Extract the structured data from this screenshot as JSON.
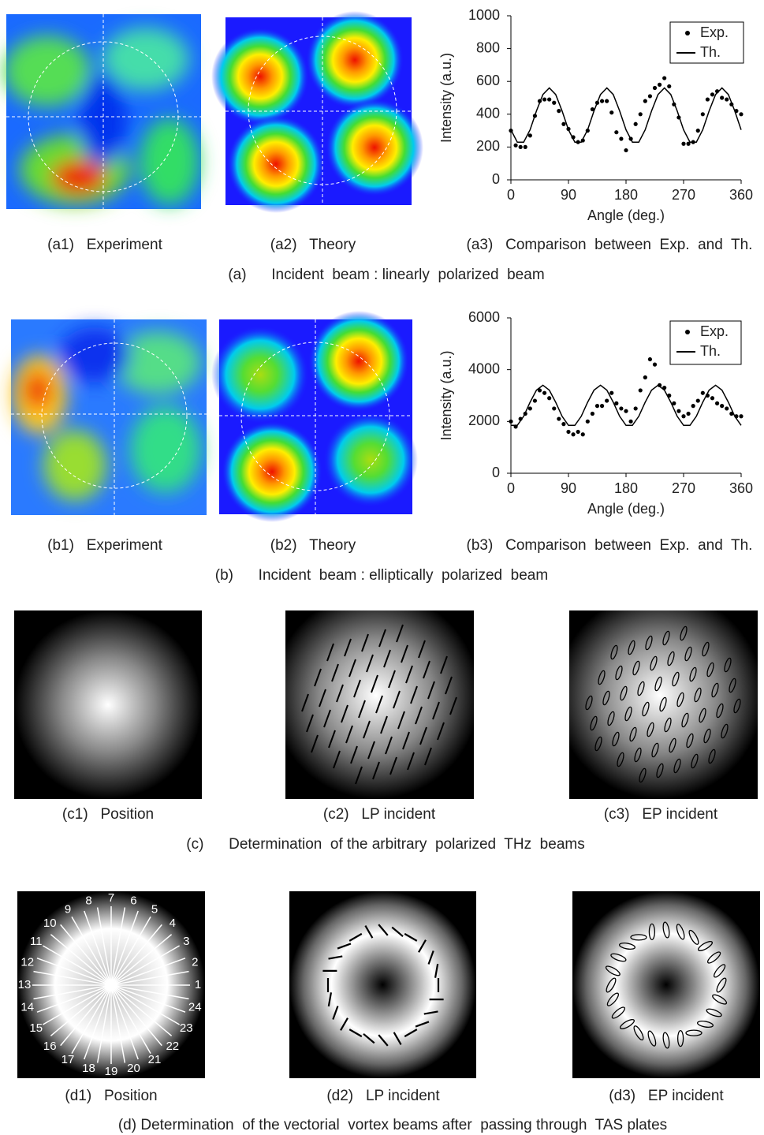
{
  "chart_data": [
    {
      "type": "line",
      "xlabel": "Angle (deg.)",
      "ylabel": "Intensity (a.u.)",
      "xlim": [
        0,
        360
      ],
      "xticks": [
        0,
        90,
        180,
        270,
        360
      ],
      "ylim": [
        0,
        1000
      ],
      "yticks": [
        0,
        200,
        400,
        600,
        800,
        1000
      ],
      "legend": "upper right",
      "series": [
        {
          "name": "Exp.",
          "type": "scatter",
          "color": "#000000",
          "x": [
            0,
            7.5,
            15,
            22.5,
            30,
            37.5,
            45,
            52.5,
            60,
            67.5,
            75,
            82.5,
            90,
            97.5,
            105,
            112.5,
            120,
            127.5,
            135,
            142.5,
            150,
            157.5,
            165,
            172.5,
            180,
            187.5,
            195,
            202.5,
            210,
            217.5,
            225,
            232.5,
            240,
            247.5,
            255,
            262.5,
            270,
            277.5,
            285,
            292.5,
            300,
            307.5,
            315,
            322.5,
            330,
            337.5,
            345,
            352.5,
            360
          ],
          "values": [
            300,
            210,
            200,
            200,
            270,
            390,
            480,
            490,
            490,
            470,
            420,
            340,
            310,
            260,
            230,
            240,
            300,
            430,
            470,
            480,
            480,
            410,
            290,
            250,
            180,
            250,
            340,
            400,
            480,
            510,
            560,
            580,
            620,
            570,
            460,
            380,
            220,
            220,
            230,
            300,
            400,
            490,
            520,
            540,
            500,
            490,
            460,
            420,
            400
          ]
        },
        {
          "name": "Th.",
          "type": "line",
          "color": "#000000",
          "x": [
            0,
            10,
            20,
            30,
            40,
            50,
            60,
            70,
            80,
            90,
            100,
            110,
            120,
            130,
            140,
            150,
            160,
            170,
            180,
            190,
            200,
            210,
            220,
            230,
            240,
            250,
            260,
            270,
            280,
            290,
            300,
            310,
            320,
            330,
            340,
            350,
            360
          ],
          "values": [
            305,
            230,
            230,
            305,
            420,
            520,
            560,
            520,
            420,
            305,
            230,
            230,
            305,
            420,
            520,
            560,
            520,
            420,
            305,
            230,
            230,
            305,
            420,
            520,
            560,
            520,
            420,
            305,
            230,
            230,
            305,
            420,
            520,
            560,
            520,
            420,
            305
          ]
        }
      ]
    },
    {
      "type": "line",
      "xlabel": "Angle (deg.)",
      "ylabel": "Intensity (a.u.)",
      "xlim": [
        0,
        360
      ],
      "xticks": [
        0,
        90,
        180,
        270,
        360
      ],
      "ylim": [
        0,
        6000
      ],
      "yticks": [
        0,
        2000,
        4000,
        6000
      ],
      "legend": "upper right",
      "series": [
        {
          "name": "Exp.",
          "type": "scatter",
          "color": "#000000",
          "x": [
            0,
            7.5,
            15,
            22.5,
            30,
            37.5,
            45,
            52.5,
            60,
            67.5,
            75,
            82.5,
            90,
            97.5,
            105,
            112.5,
            120,
            127.5,
            135,
            142.5,
            150,
            157.5,
            165,
            172.5,
            180,
            187.5,
            195,
            202.5,
            210,
            217.5,
            225,
            232.5,
            240,
            247.5,
            255,
            262.5,
            270,
            277.5,
            285,
            292.5,
            300,
            307.5,
            315,
            322.5,
            330,
            337.5,
            345,
            352.5,
            360
          ],
          "values": [
            2000,
            1800,
            2100,
            2300,
            2500,
            2800,
            3200,
            3100,
            2900,
            2500,
            2100,
            1900,
            1600,
            1500,
            1600,
            1500,
            2000,
            2300,
            2600,
            2600,
            2800,
            3100,
            2700,
            2500,
            2400,
            2000,
            2500,
            3200,
            3700,
            4400,
            4200,
            3400,
            3300,
            3000,
            2700,
            2400,
            2200,
            2300,
            2600,
            2800,
            3100,
            3000,
            2900,
            2700,
            2600,
            2500,
            2300,
            2200,
            2200
          ]
        },
        {
          "name": "Th.",
          "type": "line",
          "color": "#000000",
          "x": [
            0,
            10,
            20,
            30,
            40,
            50,
            60,
            70,
            80,
            90,
            100,
            110,
            120,
            130,
            140,
            150,
            160,
            170,
            180,
            190,
            200,
            210,
            220,
            230,
            240,
            250,
            260,
            270,
            280,
            290,
            300,
            310,
            320,
            330,
            340,
            350,
            360
          ],
          "values": [
            1850,
            1850,
            2200,
            2740,
            3210,
            3400,
            3210,
            2740,
            2200,
            1850,
            1850,
            2200,
            2740,
            3210,
            3400,
            3210,
            2740,
            2200,
            1850,
            1850,
            2200,
            2740,
            3210,
            3400,
            3210,
            2740,
            2200,
            1850,
            1850,
            2200,
            2740,
            3210,
            3400,
            3210,
            2740,
            2200,
            1850
          ]
        }
      ]
    }
  ],
  "captions": {
    "a1": "(a1)   Experiment",
    "a2": "(a2)   Theory",
    "a3": "(a3)   Comparison  between  Exp.  and  Th.",
    "a": "(a)      Incident  beam : linearly  polarized  beam",
    "b1": "(b1)   Experiment",
    "b2": "(b2)   Theory",
    "b3": "(b3)   Comparison  between  Exp.  and  Th.",
    "b": "(b)      Incident  beam : elliptically  polarized  beam",
    "c1": "(c1)   Position",
    "c2": "(c2)   LP incident",
    "c3": "(c3)   EP incident",
    "c": "(c)      Determination  of the arbitrary  polarized  THz  beams",
    "d1": "(d1)   Position",
    "d2": "(d2)   LP incident",
    "d3": "(d3)   EP incident",
    "d": "(d) Determination  of the vectorial  vortex beams after  passing through  TAS plates"
  },
  "dial_labels": [
    "1",
    "2",
    "3",
    "4",
    "5",
    "6",
    "7",
    "8",
    "9",
    "10",
    "11",
    "12",
    "13",
    "14",
    "15",
    "16",
    "17",
    "18",
    "19",
    "20",
    "21",
    "22",
    "23",
    "24"
  ]
}
